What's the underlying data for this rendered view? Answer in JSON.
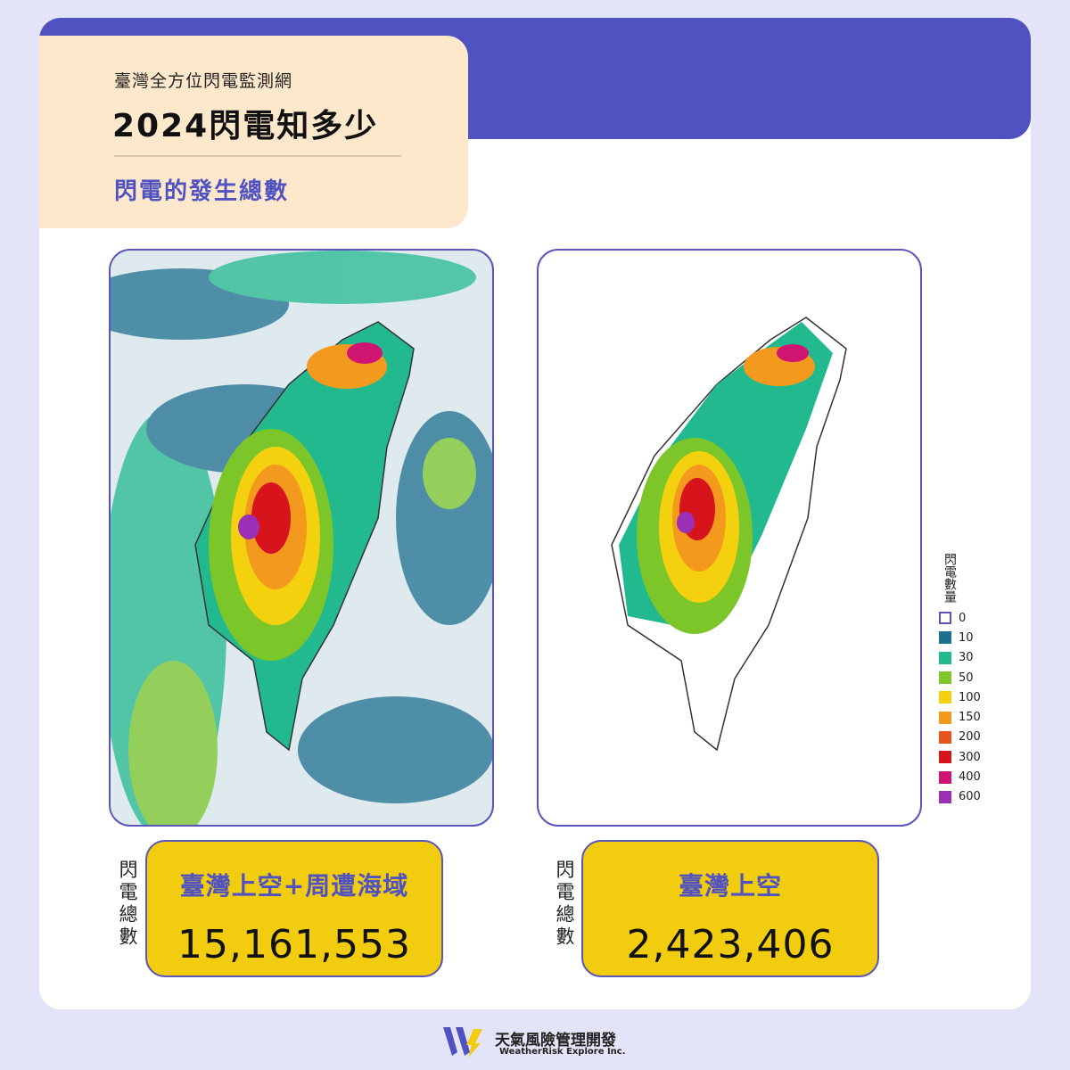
{
  "header": {
    "subtitle": "臺灣全方位閃電監測網",
    "title": "2024閃電知多少",
    "section": "閃電的發生總數"
  },
  "legend": {
    "title": "閃電數量",
    "items": [
      {
        "label": 0,
        "color": "#ffffff"
      },
      {
        "label": 10,
        "color": "#1f6f8f"
      },
      {
        "label": 30,
        "color": "#23b98f"
      },
      {
        "label": 50,
        "color": "#7cc62a"
      },
      {
        "label": 100,
        "color": "#f3d10f"
      },
      {
        "label": 150,
        "color": "#f39a1e"
      },
      {
        "label": 200,
        "color": "#e8521b"
      },
      {
        "label": 300,
        "color": "#d7141c"
      },
      {
        "label": 400,
        "color": "#d01472"
      },
      {
        "label": 600,
        "color": "#9b2fb5"
      }
    ]
  },
  "panels": [
    {
      "side_label": "閃電總數",
      "region": "臺灣上空+周遭海域",
      "total": "15,161,553"
    },
    {
      "side_label": "閃電總數",
      "region": "臺灣上空",
      "total": "2,423,406"
    }
  ],
  "footer": {
    "brand": "天氣風險管理開發",
    "brand_en": "WeatherRisk Explore Inc."
  }
}
